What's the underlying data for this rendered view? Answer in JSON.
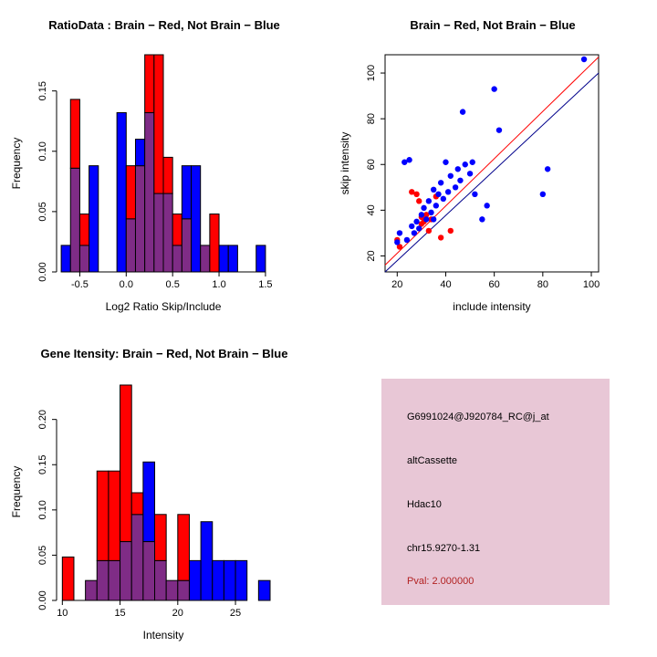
{
  "info_box": {
    "bg": "#E8C7D6",
    "lines": [
      {
        "text": "G6991024@J920784_RC@j_at",
        "color": "#000000"
      },
      {
        "text": "altCassette",
        "color": "#000000"
      },
      {
        "text": "Hdac10",
        "color": "#000000"
      },
      {
        "text": "chr15.9270-1.31",
        "color": "#000000"
      },
      {
        "text": "Pval: 2.000000",
        "color": "#B22222"
      }
    ]
  },
  "chart_data": [
    {
      "type": "bar",
      "id": "ratio-hist",
      "title": "RatioData : Brain − Red, Not Brain − Blue",
      "xlabel": "Log2 Ratio Skip/Include",
      "ylabel": "Frequency",
      "bin_start": -0.7,
      "bin_width": 0.1,
      "xlim": [
        -0.75,
        1.55
      ],
      "ylim": [
        0,
        0.18
      ],
      "xticks": [
        -0.5,
        0.0,
        0.5,
        1.0,
        1.5
      ],
      "xticklabels": [
        "-0.5",
        "0.0",
        "0.5",
        "1.0",
        "1.5"
      ],
      "yticks": [
        0,
        0.05,
        0.1,
        0.15
      ],
      "yticklabels": [
        "0.00",
        "0.05",
        "0.10",
        "0.15"
      ],
      "overlap_color": "#7F2C86",
      "grid": false,
      "legend": "none",
      "series": [
        {
          "name": "Brain (red)",
          "color": "#FF0000",
          "values": [
            0,
            0.143,
            0.048,
            0,
            0,
            0,
            0,
            0.088,
            0.088,
            0.18,
            0.18,
            0.095,
            0.048,
            0.044,
            0,
            0.022,
            0.048,
            0,
            0,
            0,
            0,
            0
          ]
        },
        {
          "name": "Not Brain (blue)",
          "color": "#0000FF",
          "values": [
            0.022,
            0.086,
            0.022,
            0.088,
            0,
            0,
            0.132,
            0.044,
            0.11,
            0.132,
            0.065,
            0.065,
            0.022,
            0.088,
            0.088,
            0.022,
            0,
            0.022,
            0.022,
            0,
            0,
            0.022
          ]
        }
      ]
    },
    {
      "type": "scatter",
      "id": "intensity-scatter",
      "title": "Brain − Red, Not Brain − Blue",
      "xlabel": "include intensity",
      "ylabel": "skip intensity",
      "xlim": [
        15,
        103
      ],
      "ylim": [
        13,
        108
      ],
      "xticks": [
        20,
        40,
        60,
        80,
        100
      ],
      "xticklabels": [
        "20",
        "40",
        "60",
        "80",
        "100"
      ],
      "yticks": [
        20,
        40,
        60,
        80,
        100
      ],
      "yticklabels": [
        "20",
        "40",
        "60",
        "80",
        "100"
      ],
      "frame": true,
      "grid": false,
      "legend": "none",
      "series": [
        {
          "name": "Brain (red)",
          "color": "#FF0000",
          "points": [
            [
              20,
              27
            ],
            [
              21,
              24
            ],
            [
              26,
              48
            ],
            [
              28,
              47
            ],
            [
              29,
              44
            ],
            [
              30,
              34
            ],
            [
              30,
              37
            ],
            [
              31,
              35
            ],
            [
              32,
              38
            ],
            [
              33,
              31
            ],
            [
              34,
              36
            ],
            [
              36,
              46
            ],
            [
              38,
              28
            ],
            [
              42,
              31
            ]
          ]
        },
        {
          "name": "Not Brain (blue)",
          "color": "#0000FF",
          "points": [
            [
              20,
              26
            ],
            [
              21,
              30
            ],
            [
              23,
              61
            ],
            [
              24,
              27
            ],
            [
              25,
              62
            ],
            [
              26,
              33
            ],
            [
              27,
              30
            ],
            [
              28,
              35
            ],
            [
              29,
              32
            ],
            [
              30,
              38
            ],
            [
              31,
              41
            ],
            [
              32,
              36
            ],
            [
              33,
              44
            ],
            [
              34,
              39
            ],
            [
              35,
              36
            ],
            [
              35,
              49
            ],
            [
              36,
              42
            ],
            [
              37,
              47
            ],
            [
              38,
              52
            ],
            [
              39,
              45
            ],
            [
              40,
              61
            ],
            [
              41,
              48
            ],
            [
              42,
              55
            ],
            [
              44,
              50
            ],
            [
              45,
              58
            ],
            [
              46,
              53
            ],
            [
              47,
              83
            ],
            [
              48,
              60
            ],
            [
              50,
              56
            ],
            [
              51,
              61
            ],
            [
              52,
              47
            ],
            [
              55,
              36
            ],
            [
              57,
              42
            ],
            [
              60,
              93
            ],
            [
              62,
              75
            ],
            [
              80,
              47
            ],
            [
              82,
              58
            ],
            [
              97,
              106
            ]
          ]
        }
      ],
      "lines": [
        {
          "name": "brain-fit-line",
          "color": "#FF0000",
          "x1": 15,
          "y1": 16,
          "x2": 103,
          "y2": 107
        },
        {
          "name": "notbrain-fit-line",
          "color": "#00008B",
          "x1": 15,
          "y1": 13,
          "x2": 103,
          "y2": 100
        }
      ]
    },
    {
      "type": "bar",
      "id": "gene-hist",
      "title": "Gene Itensity: Brain − Red, Not Brain − Blue",
      "xlabel": "Intensity",
      "ylabel": "Frequency",
      "bin_start": 10,
      "bin_width": 1,
      "xlim": [
        9.5,
        28
      ],
      "ylim": [
        0,
        0.24
      ],
      "xticks": [
        10,
        15,
        20,
        25
      ],
      "xticklabels": [
        "10",
        "15",
        "20",
        "25"
      ],
      "yticks": [
        0,
        0.05,
        0.1,
        0.15,
        0.2
      ],
      "yticklabels": [
        "0.00",
        "0.05",
        "0.10",
        "0.15",
        "0.20"
      ],
      "overlap_color": "#7F2C86",
      "grid": false,
      "legend": "none",
      "series": [
        {
          "name": "Brain (red)",
          "color": "#FF0000",
          "values": [
            0.048,
            0,
            0.022,
            0.143,
            0.143,
            0.238,
            0.119,
            0.065,
            0.095,
            0.022,
            0.095,
            0,
            0,
            0,
            0,
            0,
            0,
            0
          ]
        },
        {
          "name": "Not Brain (blue)",
          "color": "#0000FF",
          "values": [
            0,
            0,
            0.022,
            0.044,
            0.044,
            0.065,
            0.095,
            0.153,
            0.044,
            0.022,
            0.022,
            0.044,
            0.087,
            0.044,
            0.044,
            0.044,
            0,
            0.022
          ]
        }
      ]
    }
  ]
}
